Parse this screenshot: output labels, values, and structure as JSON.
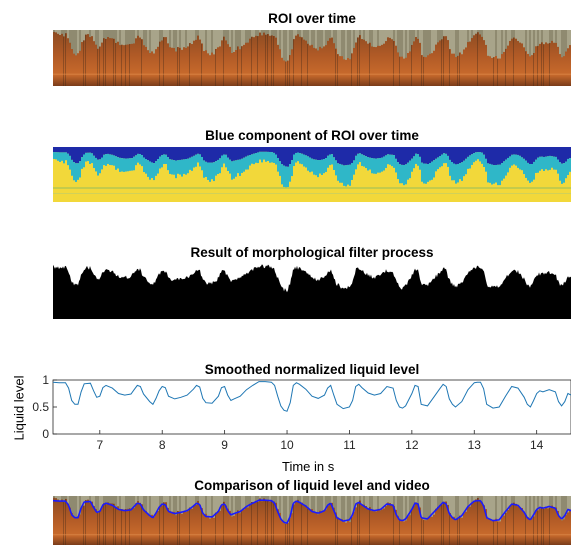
{
  "panels": {
    "roi_title": "ROI over time",
    "blue_title": "Blue component of ROI over time",
    "morph_title": "Result of morphological filter process",
    "comparison_title": "Comparison of liquid level and video"
  },
  "colors": {
    "video_rust": "#b05a26",
    "video_dark": "#3a2418",
    "video_foam": "#a8a48a",
    "blue_yellow": "#f2d83a",
    "blue_cyan": "#2fb7c8",
    "blue_navy": "#1e2aa8",
    "morph_black": "#000000",
    "line_series": "#1f77b4",
    "overlay_line": "#1a1aff"
  },
  "chart_data": {
    "type": "line",
    "title": "Smoothed normalized liquid level",
    "xlabel": "Time in s",
    "ylabel": "Liquid level",
    "xlim": [
      6.25,
      14.55
    ],
    "ylim": [
      0,
      1
    ],
    "xticks": [
      7,
      8,
      9,
      10,
      11,
      12,
      13,
      14
    ],
    "yticks": [
      0,
      0.5,
      1
    ],
    "grid": false,
    "series": [
      {
        "x": [
          6.25,
          6.35,
          6.45,
          6.5,
          6.55,
          6.6,
          6.65,
          6.7,
          6.75,
          6.85,
          6.9,
          6.95,
          7.0,
          7.05,
          7.1,
          7.2,
          7.3,
          7.4,
          7.5,
          7.55,
          7.6,
          7.65,
          7.7,
          7.8,
          7.85,
          7.9,
          7.95,
          8.0,
          8.05,
          8.1,
          8.2,
          8.3,
          8.4,
          8.5,
          8.55,
          8.6,
          8.65,
          8.7,
          8.8,
          8.9,
          8.95,
          9.0,
          9.05,
          9.1,
          9.15,
          9.25,
          9.35,
          9.45,
          9.55,
          9.65,
          9.75,
          9.8,
          9.85,
          9.9,
          9.95,
          10.0,
          10.05,
          10.1,
          10.15,
          10.2,
          10.3,
          10.4,
          10.5,
          10.6,
          10.65,
          10.7,
          10.75,
          10.8,
          10.9,
          11.0,
          11.05,
          11.1,
          11.15,
          11.2,
          11.3,
          11.4,
          11.5,
          11.6,
          11.7,
          11.75,
          11.8,
          11.85,
          11.9,
          12.0,
          12.05,
          12.1,
          12.15,
          12.25,
          12.35,
          12.45,
          12.5,
          12.55,
          12.6,
          12.65,
          12.7,
          12.8,
          12.9,
          13.0,
          13.05,
          13.1,
          13.15,
          13.2,
          13.3,
          13.4,
          13.5,
          13.6,
          13.7,
          13.8,
          13.85,
          13.9,
          13.95,
          14.0,
          14.05,
          14.1,
          14.2,
          14.3,
          14.35,
          14.4,
          14.45,
          14.5,
          14.55
        ],
        "y": [
          0.96,
          0.95,
          0.95,
          0.85,
          0.62,
          0.55,
          0.55,
          0.78,
          0.93,
          0.94,
          0.8,
          0.68,
          0.7,
          0.86,
          0.9,
          0.85,
          0.75,
          0.72,
          0.74,
          0.82,
          0.9,
          0.88,
          0.74,
          0.6,
          0.55,
          0.66,
          0.8,
          0.88,
          0.86,
          0.7,
          0.65,
          0.68,
          0.72,
          0.83,
          0.9,
          0.87,
          0.66,
          0.58,
          0.57,
          0.7,
          0.86,
          0.88,
          0.72,
          0.62,
          0.65,
          0.7,
          0.82,
          0.9,
          0.97,
          0.97,
          0.96,
          0.9,
          0.7,
          0.52,
          0.44,
          0.42,
          0.58,
          0.9,
          0.95,
          0.92,
          0.83,
          0.7,
          0.66,
          0.72,
          0.85,
          0.9,
          0.72,
          0.55,
          0.47,
          0.5,
          0.62,
          0.88,
          0.92,
          0.86,
          0.76,
          0.72,
          0.75,
          0.88,
          0.85,
          0.62,
          0.5,
          0.48,
          0.52,
          0.75,
          0.9,
          0.88,
          0.55,
          0.52,
          0.68,
          0.84,
          0.92,
          0.88,
          0.65,
          0.55,
          0.5,
          0.6,
          0.82,
          0.95,
          0.96,
          0.96,
          0.84,
          0.55,
          0.48,
          0.5,
          0.7,
          0.88,
          0.85,
          0.68,
          0.55,
          0.5,
          0.62,
          0.75,
          0.8,
          0.78,
          0.82,
          0.78,
          0.6,
          0.52,
          0.6,
          0.75,
          0.72
        ]
      }
    ]
  }
}
